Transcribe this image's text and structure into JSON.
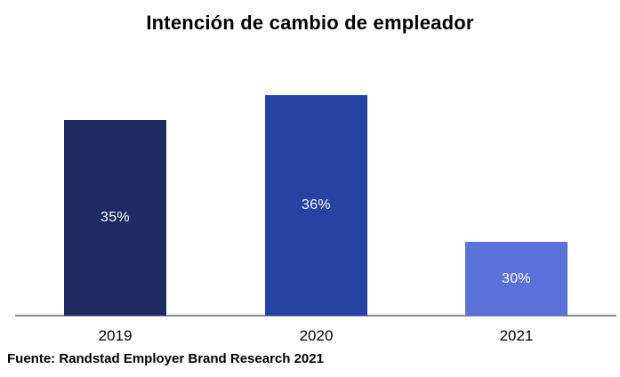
{
  "title": "Intención de cambio de empleador",
  "source_note": "Fuente: Randstad Employer Brand Research 2021",
  "chart_data": {
    "type": "bar",
    "title": "Intención de cambio de empleador",
    "categories": [
      "2019",
      "2020",
      "2021"
    ],
    "values": [
      35,
      36,
      30
    ],
    "value_labels": [
      "35%",
      "36%",
      "30%"
    ],
    "unit": "%",
    "bar_colors": [
      "#1F2C64",
      "#2642A3",
      "#5B72D8"
    ],
    "value_label_color": "#FFFFFF",
    "value_labels_position": "inside-center",
    "xlabel": "",
    "ylabel": "",
    "ylim": [
      27,
      36
    ],
    "y_axis_visible": false,
    "grid": false,
    "legend": false,
    "annotation": "Fuente: Randstad Employer Brand Research 2021"
  },
  "colors": {
    "background": "#FFFFFF",
    "axis_line": "#8A8A8A",
    "title_text": "#000000",
    "category_text": "#000000",
    "source_text": "#000000"
  }
}
